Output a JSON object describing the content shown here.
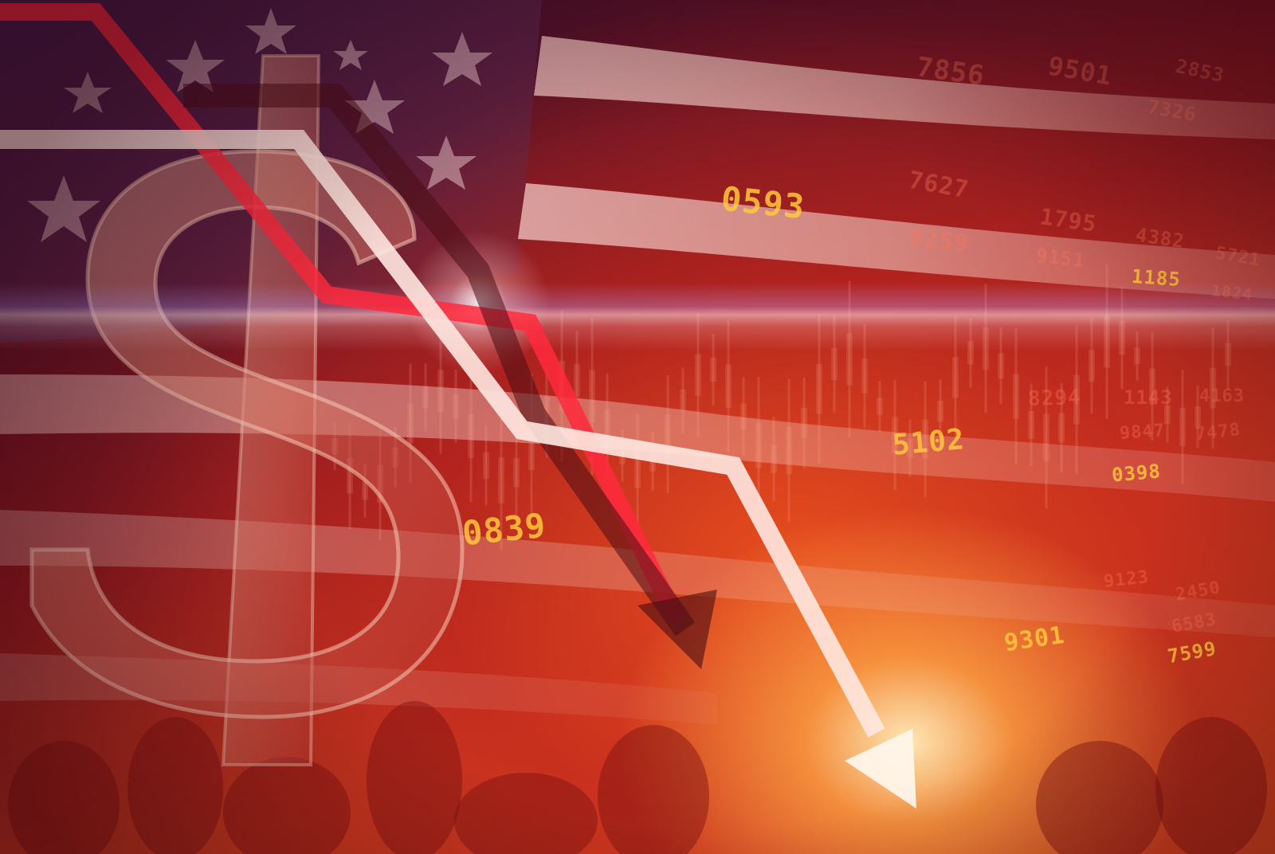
{
  "image": {
    "description_tags": [
      "us-flag",
      "dollar-sign",
      "down-arrows",
      "stock-ticker-numbers",
      "crowd"
    ],
    "colors": {
      "primary_red": "#c8201f",
      "deep_red": "#6b0d0d",
      "glow": "#fff0c0",
      "flag_blue": "#2b2a66",
      "ticker_gold": "#ffc83c"
    }
  },
  "tickers": [
    {
      "text": "0593",
      "tone": "bright"
    },
    {
      "text": "5102",
      "tone": "bright"
    },
    {
      "text": "0839",
      "tone": "bright"
    },
    {
      "text": "9301",
      "tone": "bright"
    },
    {
      "text": "0398",
      "tone": "bright"
    },
    {
      "text": "7599",
      "tone": "bright"
    },
    {
      "text": "1185",
      "tone": "bright"
    },
    {
      "text": "7856",
      "tone": "dim"
    },
    {
      "text": "9501",
      "tone": "dim"
    },
    {
      "text": "2853",
      "tone": "dim"
    },
    {
      "text": "7326",
      "tone": "dim"
    },
    {
      "text": "7627",
      "tone": "dim"
    },
    {
      "text": "1795",
      "tone": "dim"
    },
    {
      "text": "4382",
      "tone": "dim"
    },
    {
      "text": "9259",
      "tone": "dim"
    },
    {
      "text": "9151",
      "tone": "dim"
    },
    {
      "text": "5721",
      "tone": "dim"
    },
    {
      "text": "1824",
      "tone": "dim"
    },
    {
      "text": "1143",
      "tone": "dim"
    },
    {
      "text": "4163",
      "tone": "dim"
    },
    {
      "text": "8294",
      "tone": "dim"
    },
    {
      "text": "9847",
      "tone": "dim"
    },
    {
      "text": "7478",
      "tone": "dim"
    },
    {
      "text": "2450",
      "tone": "dim"
    },
    {
      "text": "6583",
      "tone": "dim"
    },
    {
      "text": "9123",
      "tone": "dim"
    }
  ]
}
